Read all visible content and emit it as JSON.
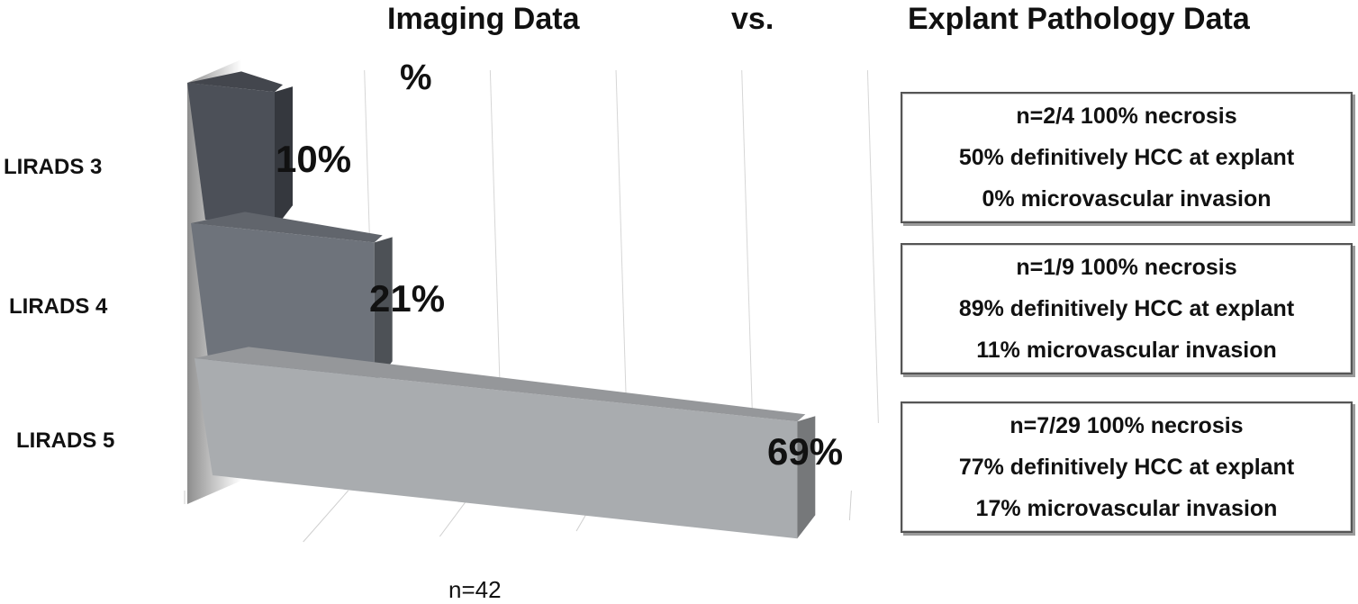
{
  "header": {
    "left_title": "Imaging Data",
    "vs": "vs.",
    "right_title": "Explant Pathology Data"
  },
  "chart_data": {
    "type": "bar",
    "orientation": "horizontal",
    "three_d": true,
    "categories": [
      "LIRADS 3",
      "LIRADS 4",
      "LIRADS 5"
    ],
    "values": [
      10,
      21,
      69
    ],
    "data_labels": [
      "10%",
      "21%",
      "69%"
    ],
    "unit_label": "%",
    "xlim": [
      0,
      100
    ],
    "grid": true,
    "legend": "none",
    "colors": [
      "#4c5058",
      "#6e737b",
      "#a9acaf"
    ],
    "footnote": "n=42"
  },
  "pathology": [
    {
      "lines": [
        "n=2/4 100% necrosis",
        "50% definitively HCC at explant",
        "0% microvascular invasion"
      ]
    },
    {
      "lines": [
        "n=1/9 100% necrosis",
        "89% definitively HCC at explant",
        "11% microvascular invasion"
      ]
    },
    {
      "lines": [
        "n=7/29 100% necrosis",
        "77% definitively HCC at explant",
        "17% microvascular invasion"
      ]
    }
  ]
}
